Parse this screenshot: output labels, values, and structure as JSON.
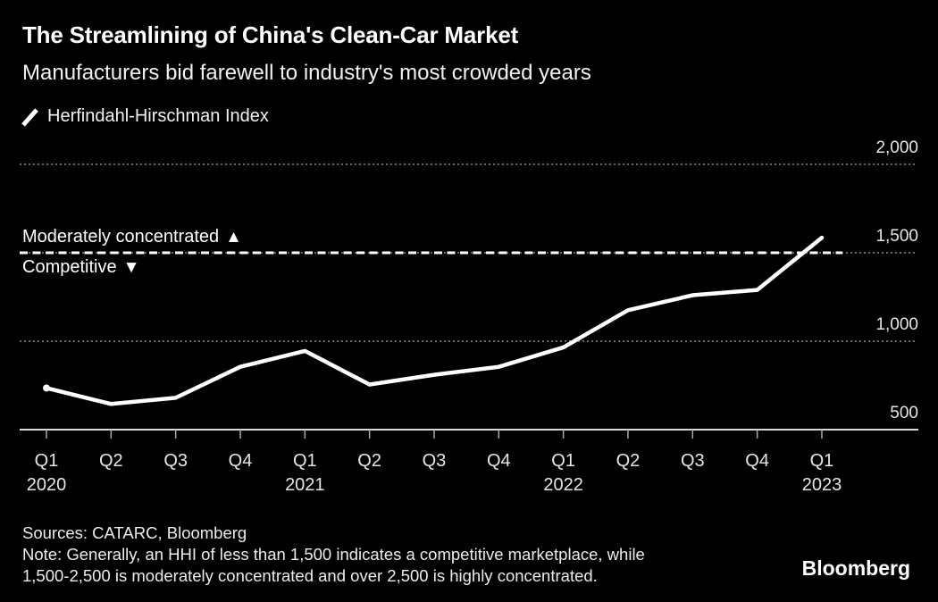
{
  "header": {
    "title": "The Streamlining of China's Clean-Car Market",
    "subtitle": "Manufacturers bid farewell to industry's most crowded years",
    "legend": {
      "series_label": "Herfindahl-Hirschman Index"
    }
  },
  "chart_data": {
    "type": "line",
    "title": "The Streamlining of China's Clean-Car Market",
    "subtitle": "Manufacturers bid farewell to industry's most crowded years",
    "categories": [
      "Q1 2020",
      "Q2 2020",
      "Q3 2020",
      "Q4 2020",
      "Q1 2021",
      "Q2 2021",
      "Q3 2021",
      "Q4 2021",
      "Q1 2022",
      "Q2 2022",
      "Q3 2022",
      "Q4 2022",
      "Q1 2023"
    ],
    "series": [
      {
        "name": "Herfindahl-Hirschman Index",
        "values": [
          735,
          645,
          680,
          855,
          945,
          755,
          810,
          855,
          965,
          1175,
          1260,
          1290,
          1585
        ]
      }
    ],
    "x_tick_labels": [
      "Q1",
      "Q2",
      "Q3",
      "Q4",
      "Q1",
      "Q2",
      "Q3",
      "Q4",
      "Q1",
      "Q2",
      "Q3",
      "Q4",
      "Q1"
    ],
    "x_year_labels": [
      {
        "label": "2020",
        "tick_index": 0
      },
      {
        "label": "2021",
        "tick_index": 4
      },
      {
        "label": "2022",
        "tick_index": 8
      },
      {
        "label": "2023",
        "tick_index": 12
      }
    ],
    "y_ticks": [
      500,
      1000,
      1500,
      2000
    ],
    "y_tick_labels": [
      "500",
      "1,000",
      "1,500",
      "2,000"
    ],
    "ylim": [
      500,
      2000
    ],
    "grid": "horizontal-dotted",
    "legend_position": "top-left",
    "threshold": {
      "value": 1500,
      "label_above": "Moderately concentrated",
      "icon_above": "▲",
      "label_below": "Competitive",
      "icon_below": "▼",
      "style": "dashed-white"
    },
    "line_color": "#ffffff",
    "grid_color": "#8c8c8c",
    "background_color": "#000000"
  },
  "footer": {
    "sources": "Sources: CATARC, Bloomberg",
    "note_lines": [
      "Note: Generally, an HHI of less than 1,500 indicates a competitive marketplace, while",
      "1,500-2,500 is moderately concentrated and over 2,500 is highly concentrated."
    ],
    "brand": "Bloomberg"
  }
}
